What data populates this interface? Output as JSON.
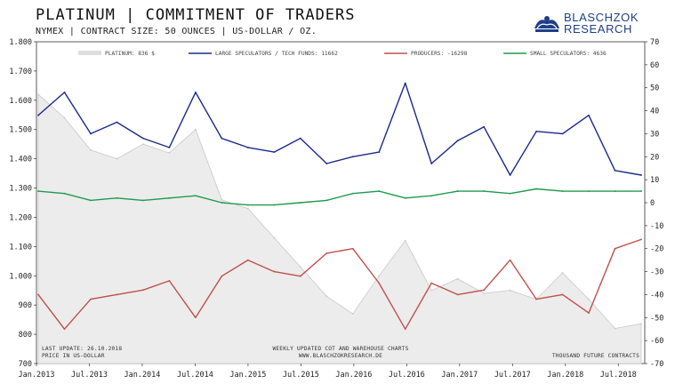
{
  "header": {
    "title": "PLATINUM | COMMITMENT OF TRADERS",
    "subtitle": "NYMEX | CONTRACT SIZE: 50 OUNCES | US-DOLLAR / OZ."
  },
  "logo": {
    "line1": "BLASCHZOK",
    "line2": "RESEARCH"
  },
  "legend": [
    {
      "label": "PLATINUM: 836 $"
    },
    {
      "label": "LARGE SPECULATORS / TECH FUNDS:  11662"
    },
    {
      "label": "PRODUCERS: -16298"
    },
    {
      "label": "SMALL SPECULATORS: 4636"
    }
  ],
  "footer": {
    "last_update": "LAST UPDATE: 26.10.2018",
    "price_unit": "PRICE  IN  US-DOLLAR",
    "weekly": "WEEKLY  UPDATED  COT  AND  WAREHOUSE  CHARTS",
    "website": "WWW.BLASCHZOKRESEARCH.DE",
    "units": "THOUSAND  FUTURE  CONTRACTS"
  },
  "colors": {
    "platinum": "#d9d9d9",
    "large_speculators": "#1b2a8a",
    "producers": "#c0504d",
    "small_speculators": "#1e9a4e"
  },
  "chart_data": {
    "type": "line",
    "x_ticks": [
      "Jan.2013",
      "Jul.2013",
      "Jan.2014",
      "Jul.2014",
      "Jan.2015",
      "Jul.2015",
      "Jan.2016",
      "Jul.2016",
      "Jan.2017",
      "Jul.2017",
      "Jan.2018",
      "Jul.2018"
    ],
    "y_left_ticks": [
      "1.800",
      "1.700",
      "1.600",
      "1.500",
      "1.400",
      "1.300",
      "1.200",
      "1.100",
      "1.000",
      "900",
      "800",
      "700"
    ],
    "y_right_ticks": [
      "70",
      "60",
      "50",
      "40",
      "30",
      "20",
      "10",
      "0",
      "-10",
      "-20",
      "-30",
      "-40",
      "-50",
      "-60",
      "-70"
    ],
    "ylim_left": [
      700,
      1800
    ],
    "ylim_right": [
      -70,
      70
    ],
    "x": [
      "2013-01",
      "2013-04",
      "2013-07",
      "2013-10",
      "2014-01",
      "2014-04",
      "2014-07",
      "2014-10",
      "2015-01",
      "2015-04",
      "2015-07",
      "2015-10",
      "2016-01",
      "2016-04",
      "2016-07",
      "2016-10",
      "2017-01",
      "2017-04",
      "2017-07",
      "2017-10",
      "2018-01",
      "2018-04",
      "2018-07",
      "2018-10"
    ],
    "series": [
      {
        "name": "PLATINUM",
        "axis": "left",
        "style": "area",
        "values": [
          1620,
          1540,
          1430,
          1400,
          1450,
          1420,
          1500,
          1260,
          1230,
          1130,
          1030,
          930,
          870,
          1000,
          1120,
          950,
          990,
          940,
          950,
          920,
          1010,
          920,
          820,
          836
        ]
      },
      {
        "name": "LARGE SPECULATORS / TECH FUNDS",
        "axis": "right",
        "style": "line",
        "values": [
          38,
          48,
          30,
          35,
          28,
          24,
          48,
          28,
          24,
          22,
          28,
          17,
          20,
          22,
          52,
          17,
          27,
          33,
          12,
          31,
          30,
          38,
          14,
          12
        ]
      },
      {
        "name": "PRODUCERS",
        "axis": "right",
        "style": "line",
        "values": [
          -40,
          -55,
          -42,
          -40,
          -38,
          -34,
          -50,
          -32,
          -25,
          -30,
          -32,
          -22,
          -20,
          -35,
          -55,
          -35,
          -40,
          -38,
          -25,
          -42,
          -40,
          -48,
          -20,
          -16
        ]
      },
      {
        "name": "SMALL SPECULATORS",
        "axis": "right",
        "style": "line",
        "values": [
          5,
          4,
          1,
          2,
          1,
          2,
          3,
          0,
          -1,
          -1,
          0,
          1,
          4,
          5,
          2,
          3,
          5,
          5,
          4,
          6,
          5,
          5,
          5,
          5
        ]
      }
    ]
  }
}
